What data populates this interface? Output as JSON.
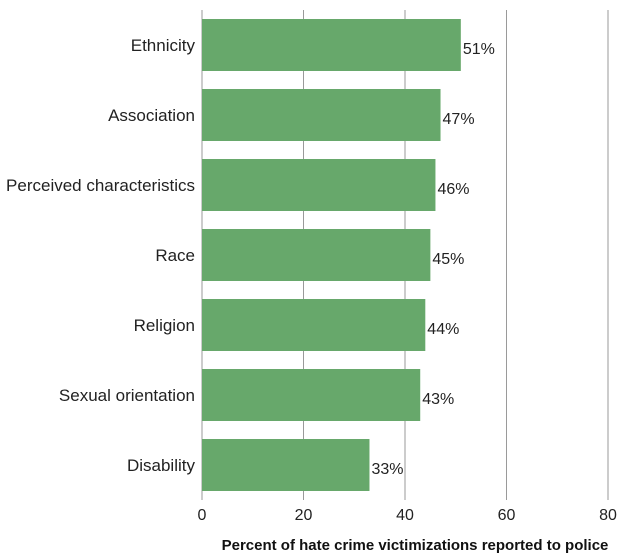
{
  "chart_data": {
    "type": "bar",
    "orientation": "horizontal",
    "categories": [
      "Ethnicity",
      "Association",
      "Perceived characteristics",
      "Race",
      "Religion",
      "Sexual orientation",
      "Disability"
    ],
    "values": [
      51,
      47,
      46,
      45,
      44,
      43,
      33
    ],
    "value_labels": [
      "51%",
      "47%",
      "46%",
      "45%",
      "44%",
      "43%",
      "33%"
    ],
    "xlabel": "Percent of hate crime victimizations reported to police",
    "xlim": [
      0,
      80
    ],
    "xticks": [
      0,
      20,
      40,
      60,
      80
    ],
    "xtick_labels": [
      "0",
      "20",
      "40",
      "60",
      "80"
    ],
    "grid": "vertical",
    "bar_color": "#67a86b",
    "gridline_color": "#9a9a9a"
  }
}
